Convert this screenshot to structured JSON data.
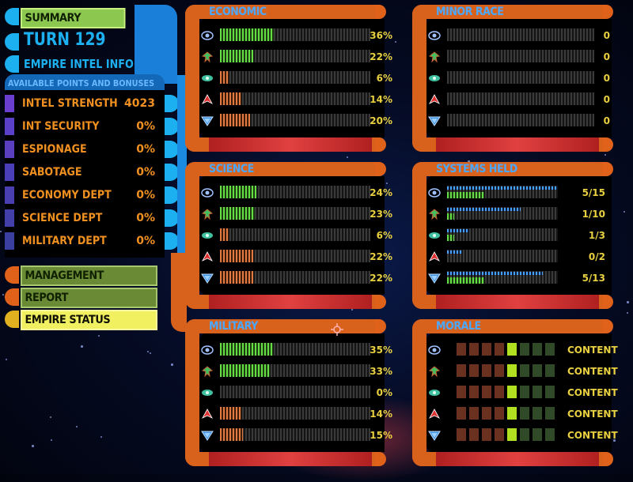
{
  "menu": {
    "summary": "SUMMARY",
    "turn": "TURN 129",
    "intel_info": "EMPIRE INTEL INFO",
    "points_header": "AVAILABLE POINTS AND BONUSES",
    "rows": [
      {
        "label": "INTEL STRENGTH",
        "value": "4023"
      },
      {
        "label": "INT SECURITY",
        "value": "0%"
      },
      {
        "label": "ESPIONAGE",
        "value": "0%"
      },
      {
        "label": "SABOTAGE",
        "value": "0%"
      },
      {
        "label": "ECONOMY DEPT",
        "value": "0%"
      },
      {
        "label": "SCIENCE DEPT",
        "value": "0%"
      },
      {
        "label": "MILITARY DEPT",
        "value": "0%"
      }
    ],
    "management": "MANAGEMENT",
    "report": "REPORT",
    "empire_status": "EMPIRE STATUS"
  },
  "races": [
    {
      "icon": "federation-emblem-icon",
      "color": "#6b9bff"
    },
    {
      "icon": "cardassian-emblem-icon",
      "color": "#40c060"
    },
    {
      "icon": "ferengi-emblem-icon",
      "color": "#40c0a0"
    },
    {
      "icon": "klingon-emblem-icon",
      "color": "#e03030"
    },
    {
      "icon": "romulan-emblem-icon",
      "color": "#4090e0"
    }
  ],
  "economic": {
    "title": "ECONOMIC",
    "values": [
      36,
      22,
      6,
      14,
      20
    ],
    "labels": [
      "36%",
      "22%",
      "6%",
      "14%",
      "20%"
    ],
    "fill_colors": [
      "green",
      "green",
      "orange",
      "orange",
      "orange"
    ]
  },
  "science": {
    "title": "SCIENCE",
    "values": [
      24,
      23,
      6,
      22,
      22
    ],
    "labels": [
      "24%",
      "23%",
      "6%",
      "22%",
      "22%"
    ],
    "fill_colors": [
      "green",
      "green",
      "orange",
      "orange",
      "orange"
    ]
  },
  "military": {
    "title": "MILITARY",
    "values": [
      35,
      33,
      0,
      14,
      15
    ],
    "labels": [
      "35%",
      "33%",
      "0%",
      "14%",
      "15%"
    ],
    "fill_colors": [
      "green",
      "green",
      "orange",
      "orange",
      "orange"
    ]
  },
  "minor_race": {
    "title": "MINOR RACE",
    "labels": [
      "0",
      "0",
      "0",
      "0",
      "0"
    ]
  },
  "systems_held": {
    "title": "SYSTEMS HELD",
    "held": [
      5,
      1,
      1,
      0,
      5
    ],
    "total": [
      15,
      10,
      3,
      2,
      13
    ],
    "labels": [
      "5/15",
      "1/10",
      "1/3",
      "0/2",
      "5/13"
    ]
  },
  "morale": {
    "title": "MORALE",
    "level": 5,
    "cells": 8,
    "labels": [
      "CONTENT",
      "CONTENT",
      "CONTENT",
      "CONTENT",
      "CONTENT"
    ]
  },
  "colors": {
    "accent_orange": "#d8611c",
    "accent_blue": "#1db0f0",
    "bar_green": "#66dd44",
    "value_yellow": "#e8d040"
  }
}
